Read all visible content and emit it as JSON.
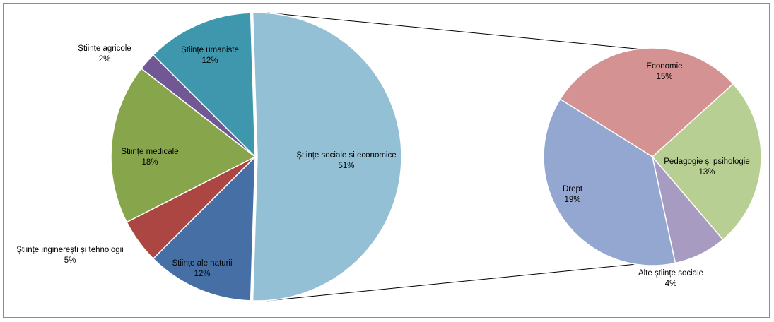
{
  "chart_data": {
    "type": "pie",
    "title": "",
    "main": {
      "slices": [
        {
          "label": "Științe sociale și economice",
          "pct_label": "51%",
          "value": 51,
          "color": "#93c0d4"
        },
        {
          "label": "Științe ale naturii",
          "pct_label": "12%",
          "value": 12,
          "color": "#4670a5"
        },
        {
          "label": "Științe inginerești și tehnologii",
          "pct_label": "5%",
          "value": 5,
          "color": "#ab4643"
        },
        {
          "label": "Științe medicale",
          "pct_label": "18%",
          "value": 18,
          "color": "#87a54b"
        },
        {
          "label": "Științe agricole",
          "pct_label": "2%",
          "value": 2,
          "color": "#715794"
        },
        {
          "label": "Științe umaniste",
          "pct_label": "12%",
          "value": 12,
          "color": "#3f97ae"
        }
      ]
    },
    "breakdown": {
      "of": "Științe sociale și economice",
      "slices": [
        {
          "label": "Economie",
          "pct_label": "15%",
          "value": 15,
          "color": "#d49292"
        },
        {
          "label": "Pedagogie și psihologie",
          "pct_label": "13%",
          "value": 13,
          "color": "#b8cf93"
        },
        {
          "label": "Alte științe sociale",
          "pct_label": "4%",
          "value": 4,
          "color": "#a89bc2"
        },
        {
          "label": "Drept",
          "pct_label": "19%",
          "value": 19,
          "color": "#93a7d0"
        }
      ]
    }
  }
}
